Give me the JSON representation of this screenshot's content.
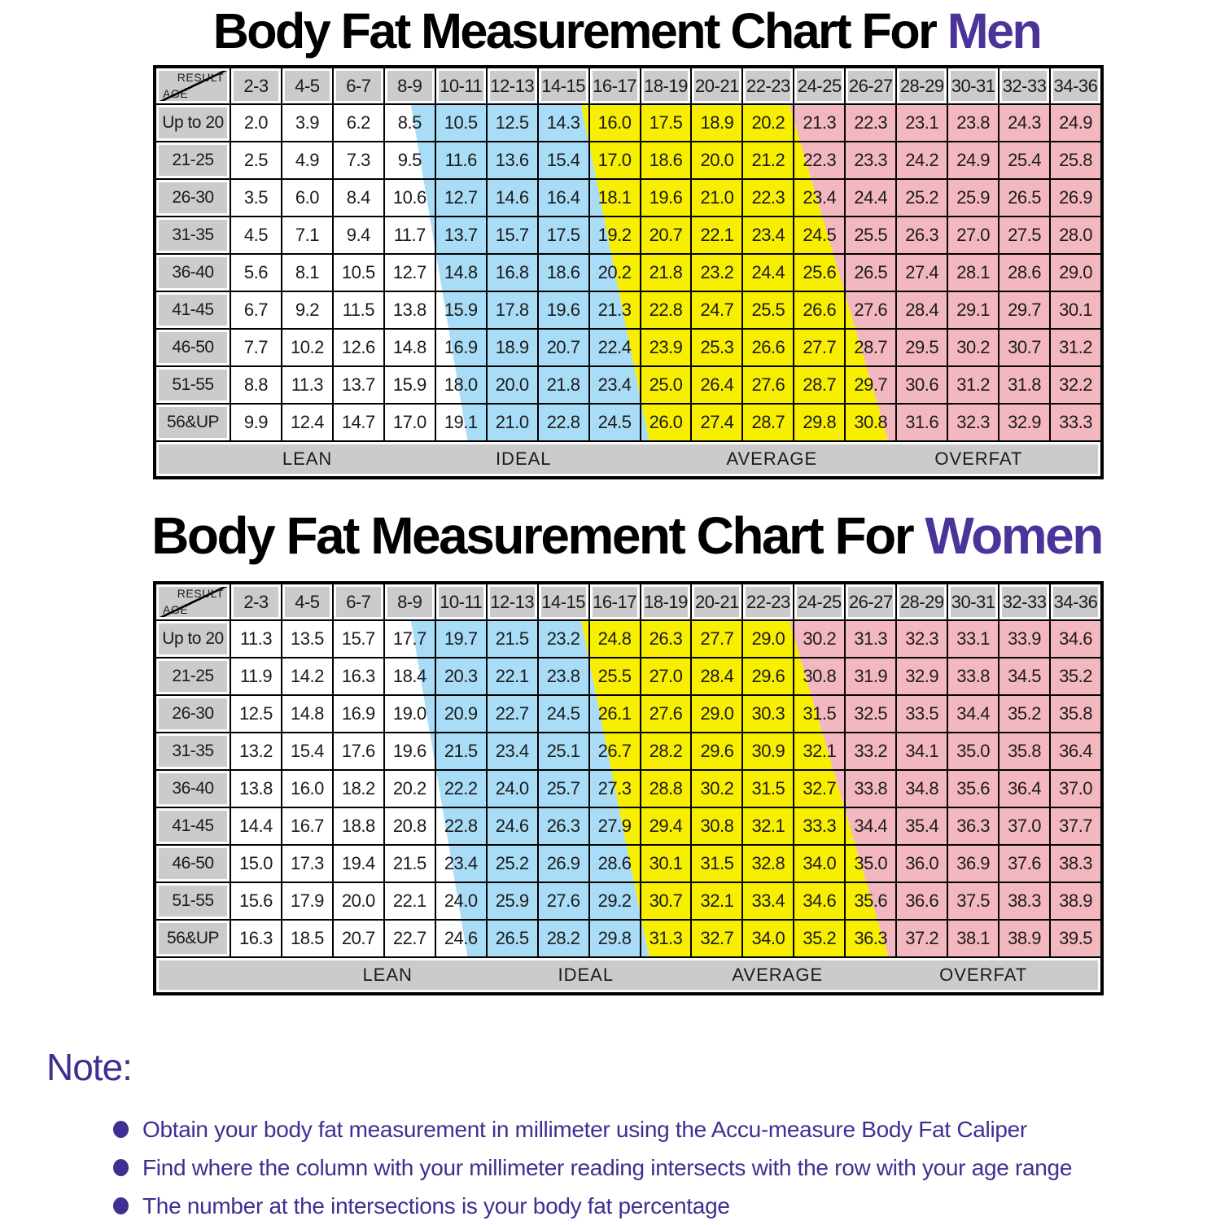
{
  "page": {
    "titles": [
      {
        "prefix": "Body Fat Measurement Chart For ",
        "highlight": "Men"
      },
      {
        "prefix": "Body Fat Measurement Chart For ",
        "highlight": "Women"
      }
    ],
    "note": {
      "heading": "Note:",
      "bullets": [
        "Obtain your body fat measurement in millimeter using the Accu-measure Body Fat Caliper",
        "Find where the column with your millimeter reading intersects with the row with your age range",
        "The number at the intersections is your body fat percentage"
      ]
    }
  },
  "corner": {
    "result": "RESULT",
    "age": "AGE"
  },
  "colors": {
    "lean_zone": "#ffffff",
    "ideal_zone": "#a9dcf6",
    "average_zone": "#f8ee00",
    "overfat_zone": "#f3b7c0",
    "header_gray": "#cbcbcb",
    "title_highlight": "#4b3399",
    "note_purple": "#3f2f92",
    "border": "#000000"
  },
  "chart_data": [
    {
      "type": "table",
      "title": "Body Fat Measurement Chart For Men",
      "x_axis_label": "RESULT (millimeter reading)",
      "y_axis_label": "AGE",
      "columns": [
        "2-3",
        "4-5",
        "6-7",
        "8-9",
        "10-11",
        "12-13",
        "14-15",
        "16-17",
        "18-19",
        "20-21",
        "22-23",
        "24-25",
        "26-27",
        "28-29",
        "30-31",
        "32-33",
        "34-36"
      ],
      "rows": [
        {
          "age": "Up to 20",
          "values": [
            "2.0",
            "3.9",
            "6.2",
            "8.5",
            "10.5",
            "12.5",
            "14.3",
            "16.0",
            "17.5",
            "18.9",
            "20.2",
            "21.3",
            "22.3",
            "23.1",
            "23.8",
            "24.3",
            "24.9"
          ]
        },
        {
          "age": "21-25",
          "values": [
            "2.5",
            "4.9",
            "7.3",
            "9.5",
            "11.6",
            "13.6",
            "15.4",
            "17.0",
            "18.6",
            "20.0",
            "21.2",
            "22.3",
            "23.3",
            "24.2",
            "24.9",
            "25.4",
            "25.8"
          ]
        },
        {
          "age": "26-30",
          "values": [
            "3.5",
            "6.0",
            "8.4",
            "10.6",
            "12.7",
            "14.6",
            "16.4",
            "18.1",
            "19.6",
            "21.0",
            "22.3",
            "23.4",
            "24.4",
            "25.2",
            "25.9",
            "26.5",
            "26.9"
          ]
        },
        {
          "age": "31-35",
          "values": [
            "4.5",
            "7.1",
            "9.4",
            "11.7",
            "13.7",
            "15.7",
            "17.5",
            "19.2",
            "20.7",
            "22.1",
            "23.4",
            "24.5",
            "25.5",
            "26.3",
            "27.0",
            "27.5",
            "28.0"
          ]
        },
        {
          "age": "36-40",
          "values": [
            "5.6",
            "8.1",
            "10.5",
            "12.7",
            "14.8",
            "16.8",
            "18.6",
            "20.2",
            "21.8",
            "23.2",
            "24.4",
            "25.6",
            "26.5",
            "27.4",
            "28.1",
            "28.6",
            "29.0"
          ]
        },
        {
          "age": "41-45",
          "values": [
            "6.7",
            "9.2",
            "11.5",
            "13.8",
            "15.9",
            "17.8",
            "19.6",
            "21.3",
            "22.8",
            "24.7",
            "25.5",
            "26.6",
            "27.6",
            "28.4",
            "29.1",
            "29.7",
            "30.1"
          ]
        },
        {
          "age": "46-50",
          "values": [
            "7.7",
            "10.2",
            "12.6",
            "14.8",
            "16.9",
            "18.9",
            "20.7",
            "22.4",
            "23.9",
            "25.3",
            "26.6",
            "27.7",
            "28.7",
            "29.5",
            "30.2",
            "30.7",
            "31.2"
          ]
        },
        {
          "age": "51-55",
          "values": [
            "8.8",
            "11.3",
            "13.7",
            "15.9",
            "18.0",
            "20.0",
            "21.8",
            "23.4",
            "25.0",
            "26.4",
            "27.6",
            "28.7",
            "29.7",
            "30.6",
            "31.2",
            "31.8",
            "32.2"
          ]
        },
        {
          "age": "56&UP",
          "values": [
            "9.9",
            "12.4",
            "14.7",
            "17.0",
            "19.1",
            "21.0",
            "22.8",
            "24.5",
            "26.0",
            "27.4",
            "28.7",
            "29.8",
            "30.8",
            "31.6",
            "32.3",
            "32.9",
            "33.3"
          ]
        }
      ],
      "zone_labels": [
        "LEAN",
        "IDEAL",
        "AVERAGE",
        "OVERFAT"
      ]
    },
    {
      "type": "table",
      "title": "Body Fat Measurement Chart For Women",
      "x_axis_label": "RESULT (millimeter reading)",
      "y_axis_label": "AGE",
      "columns": [
        "2-3",
        "4-5",
        "6-7",
        "8-9",
        "10-11",
        "12-13",
        "14-15",
        "16-17",
        "18-19",
        "20-21",
        "22-23",
        "24-25",
        "26-27",
        "28-29",
        "30-31",
        "32-33",
        "34-36"
      ],
      "rows": [
        {
          "age": "Up to 20",
          "values": [
            "11.3",
            "13.5",
            "15.7",
            "17.7",
            "19.7",
            "21.5",
            "23.2",
            "24.8",
            "26.3",
            "27.7",
            "29.0",
            "30.2",
            "31.3",
            "32.3",
            "33.1",
            "33.9",
            "34.6"
          ]
        },
        {
          "age": "21-25",
          "values": [
            "11.9",
            "14.2",
            "16.3",
            "18.4",
            "20.3",
            "22.1",
            "23.8",
            "25.5",
            "27.0",
            "28.4",
            "29.6",
            "30.8",
            "31.9",
            "32.9",
            "33.8",
            "34.5",
            "35.2"
          ]
        },
        {
          "age": "26-30",
          "values": [
            "12.5",
            "14.8",
            "16.9",
            "19.0",
            "20.9",
            "22.7",
            "24.5",
            "26.1",
            "27.6",
            "29.0",
            "30.3",
            "31.5",
            "32.5",
            "33.5",
            "34.4",
            "35.2",
            "35.8"
          ]
        },
        {
          "age": "31-35",
          "values": [
            "13.2",
            "15.4",
            "17.6",
            "19.6",
            "21.5",
            "23.4",
            "25.1",
            "26.7",
            "28.2",
            "29.6",
            "30.9",
            "32.1",
            "33.2",
            "34.1",
            "35.0",
            "35.8",
            "36.4"
          ]
        },
        {
          "age": "36-40",
          "values": [
            "13.8",
            "16.0",
            "18.2",
            "20.2",
            "22.2",
            "24.0",
            "25.7",
            "27.3",
            "28.8",
            "30.2",
            "31.5",
            "32.7",
            "33.8",
            "34.8",
            "35.6",
            "36.4",
            "37.0"
          ]
        },
        {
          "age": "41-45",
          "values": [
            "14.4",
            "16.7",
            "18.8",
            "20.8",
            "22.8",
            "24.6",
            "26.3",
            "27.9",
            "29.4",
            "30.8",
            "32.1",
            "33.3",
            "34.4",
            "35.4",
            "36.3",
            "37.0",
            "37.7"
          ]
        },
        {
          "age": "46-50",
          "values": [
            "15.0",
            "17.3",
            "19.4",
            "21.5",
            "23.4",
            "25.2",
            "26.9",
            "28.6",
            "30.1",
            "31.5",
            "32.8",
            "34.0",
            "35.0",
            "36.0",
            "36.9",
            "37.6",
            "38.3"
          ]
        },
        {
          "age": "51-55",
          "values": [
            "15.6",
            "17.9",
            "20.0",
            "22.1",
            "24.0",
            "25.9",
            "27.6",
            "29.2",
            "30.7",
            "32.1",
            "33.4",
            "34.6",
            "35.6",
            "36.6",
            "37.5",
            "38.3",
            "38.9"
          ]
        },
        {
          "age": "56&UP",
          "values": [
            "16.3",
            "18.5",
            "20.7",
            "22.7",
            "24.6",
            "26.5",
            "28.2",
            "29.8",
            "31.3",
            "32.7",
            "34.0",
            "35.2",
            "36.3",
            "37.2",
            "38.1",
            "38.9",
            "39.5"
          ]
        }
      ],
      "zone_labels": [
        "LEAN",
        "IDEAL",
        "AVERAGE",
        "OVERFAT"
      ]
    }
  ]
}
